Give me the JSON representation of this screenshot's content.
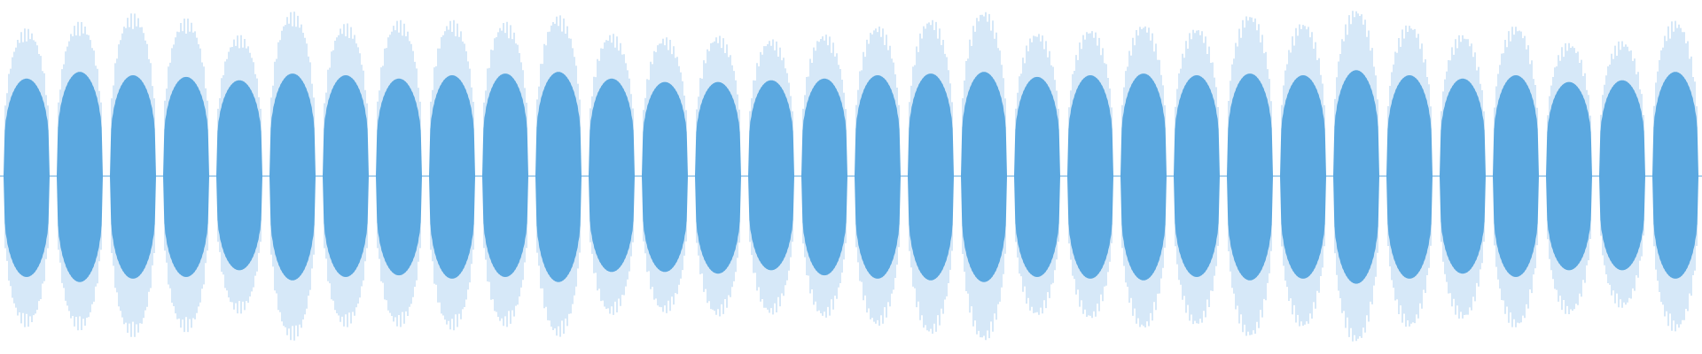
{
  "waveform": {
    "type": "audio-waveform",
    "colors": {
      "background": "#ffffff",
      "peak": "#aed2f0",
      "rms": "#5ba8e0",
      "baseline": "#5ba8e0"
    },
    "segments": [
      {
        "peak_top": 0.88,
        "peak_bottom": 0.9,
        "rms_top": 0.58,
        "rms_bottom": 0.6
      },
      {
        "peak_top": 0.92,
        "peak_bottom": 0.92,
        "rms_top": 0.62,
        "rms_bottom": 0.63
      },
      {
        "peak_top": 0.97,
        "peak_bottom": 0.96,
        "rms_top": 0.6,
        "rms_bottom": 0.61
      },
      {
        "peak_top": 0.94,
        "peak_bottom": 0.93,
        "rms_top": 0.59,
        "rms_bottom": 0.6
      },
      {
        "peak_top": 0.84,
        "peak_bottom": 0.82,
        "rms_top": 0.57,
        "rms_bottom": 0.56
      },
      {
        "peak_top": 0.98,
        "peak_bottom": 0.98,
        "rms_top": 0.61,
        "rms_bottom": 0.62
      },
      {
        "peak_top": 0.91,
        "peak_bottom": 0.9,
        "rms_top": 0.6,
        "rms_bottom": 0.6
      },
      {
        "peak_top": 0.93,
        "peak_bottom": 0.9,
        "rms_top": 0.58,
        "rms_bottom": 0.59
      },
      {
        "peak_top": 0.93,
        "peak_bottom": 0.92,
        "rms_top": 0.6,
        "rms_bottom": 0.61
      },
      {
        "peak_top": 0.92,
        "peak_bottom": 0.9,
        "rms_top": 0.61,
        "rms_bottom": 0.6
      },
      {
        "peak_top": 0.96,
        "peak_bottom": 0.96,
        "rms_top": 0.62,
        "rms_bottom": 0.63
      },
      {
        "peak_top": 0.85,
        "peak_bottom": 0.83,
        "rms_top": 0.58,
        "rms_bottom": 0.57
      },
      {
        "peak_top": 0.83,
        "peak_bottom": 0.82,
        "rms_top": 0.56,
        "rms_bottom": 0.57
      },
      {
        "peak_top": 0.84,
        "peak_bottom": 0.84,
        "rms_top": 0.56,
        "rms_bottom": 0.58
      },
      {
        "peak_top": 0.82,
        "peak_bottom": 0.83,
        "rms_top": 0.57,
        "rms_bottom": 0.56
      },
      {
        "peak_top": 0.85,
        "peak_bottom": 0.85,
        "rms_top": 0.58,
        "rms_bottom": 0.59
      },
      {
        "peak_top": 0.9,
        "peak_bottom": 0.9,
        "rms_top": 0.6,
        "rms_bottom": 0.61
      },
      {
        "peak_top": 0.94,
        "peak_bottom": 0.95,
        "rms_top": 0.61,
        "rms_bottom": 0.62
      },
      {
        "peak_top": 0.99,
        "peak_bottom": 0.99,
        "rms_top": 0.62,
        "rms_bottom": 0.63
      },
      {
        "peak_top": 0.86,
        "peak_bottom": 0.84,
        "rms_top": 0.59,
        "rms_bottom": 0.6
      },
      {
        "peak_top": 0.88,
        "peak_bottom": 0.86,
        "rms_top": 0.6,
        "rms_bottom": 0.61
      },
      {
        "peak_top": 0.91,
        "peak_bottom": 0.92,
        "rms_top": 0.61,
        "rms_bottom": 0.62
      },
      {
        "peak_top": 0.89,
        "peak_bottom": 0.9,
        "rms_top": 0.6,
        "rms_bottom": 0.6
      },
      {
        "peak_top": 0.97,
        "peak_bottom": 0.97,
        "rms_top": 0.61,
        "rms_bottom": 0.62
      },
      {
        "peak_top": 0.92,
        "peak_bottom": 0.91,
        "rms_top": 0.6,
        "rms_bottom": 0.61
      },
      {
        "peak_top": 1.0,
        "peak_bottom": 1.0,
        "rms_top": 0.63,
        "rms_bottom": 0.64
      },
      {
        "peak_top": 0.91,
        "peak_bottom": 0.91,
        "rms_top": 0.6,
        "rms_bottom": 0.61
      },
      {
        "peak_top": 0.85,
        "peak_bottom": 0.86,
        "rms_top": 0.58,
        "rms_bottom": 0.58
      },
      {
        "peak_top": 0.9,
        "peak_bottom": 0.91,
        "rms_top": 0.6,
        "rms_bottom": 0.6
      },
      {
        "peak_top": 0.8,
        "peak_bottom": 0.83,
        "rms_top": 0.56,
        "rms_bottom": 0.56
      },
      {
        "peak_top": 0.81,
        "peak_bottom": 0.79,
        "rms_top": 0.57,
        "rms_bottom": 0.56
      },
      {
        "peak_top": 0.93,
        "peak_bottom": 0.93,
        "rms_top": 0.62,
        "rms_bottom": 0.61
      }
    ]
  }
}
